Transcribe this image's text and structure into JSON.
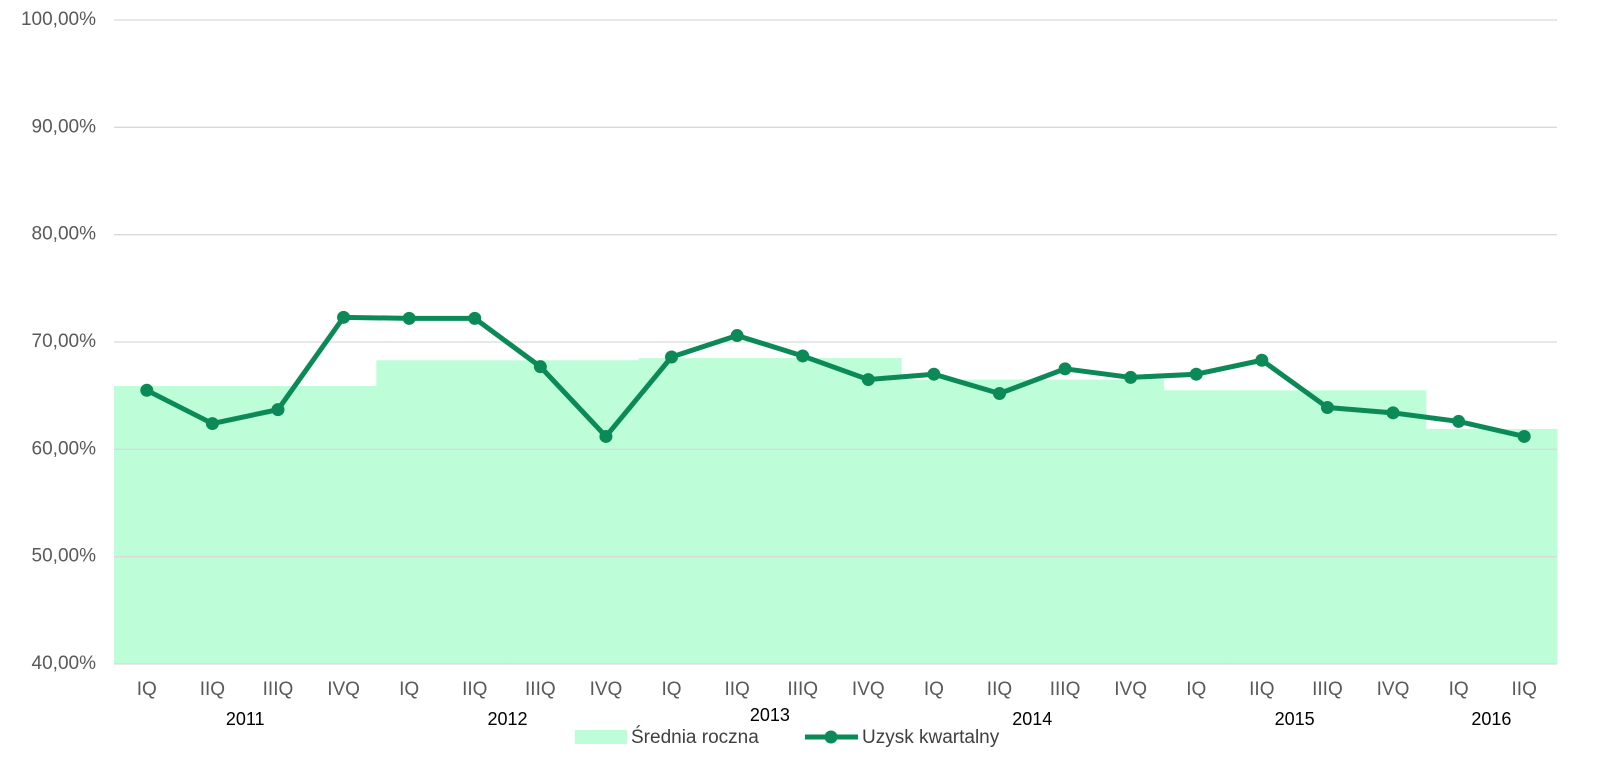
{
  "chart_data": {
    "type": "line",
    "categories": [
      "IQ",
      "IIQ",
      "IIIQ",
      "IVQ",
      "IQ",
      "IIQ",
      "IIIQ",
      "IVQ",
      "IQ",
      "IIQ",
      "IIIQ",
      "IVQ",
      "IQ",
      "IIQ",
      "IIIQ",
      "IVQ",
      "IQ",
      "IIQ",
      "IIIQ",
      "IVQ",
      "IQ",
      "IIQ"
    ],
    "years": [
      "2011",
      "2012",
      "2013",
      "2014",
      "2015",
      "2016"
    ],
    "series": [
      {
        "name": "Średnia roczna",
        "kind": "area",
        "color": "#bdfdd8",
        "values": [
          65.9,
          65.9,
          65.9,
          65.9,
          68.3,
          68.3,
          68.3,
          68.3,
          68.5,
          68.5,
          68.5,
          68.5,
          66.5,
          66.5,
          66.5,
          66.5,
          65.5,
          65.5,
          65.5,
          65.5,
          61.9,
          61.9
        ]
      },
      {
        "name": "Uzysk kwartalny",
        "kind": "line",
        "color": "#0b8a57",
        "values": [
          65.5,
          62.4,
          63.7,
          72.3,
          72.2,
          72.2,
          67.7,
          61.2,
          68.6,
          70.6,
          68.7,
          66.5,
          67.0,
          65.2,
          67.5,
          66.7,
          67.0,
          68.3,
          63.9,
          63.4,
          62.6,
          61.2
        ]
      }
    ],
    "ylim": [
      40,
      100
    ],
    "yticks": [
      {
        "value": 40,
        "label": "40,00%"
      },
      {
        "value": 50,
        "label": "50,00%"
      },
      {
        "value": 60,
        "label": "60,00%"
      },
      {
        "value": 70,
        "label": "70,00%"
      },
      {
        "value": 80,
        "label": "80,00%"
      },
      {
        "value": 90,
        "label": "90,00%"
      },
      {
        "value": 100,
        "label": "100,00%"
      }
    ],
    "grid": true,
    "legend": "bottom"
  }
}
